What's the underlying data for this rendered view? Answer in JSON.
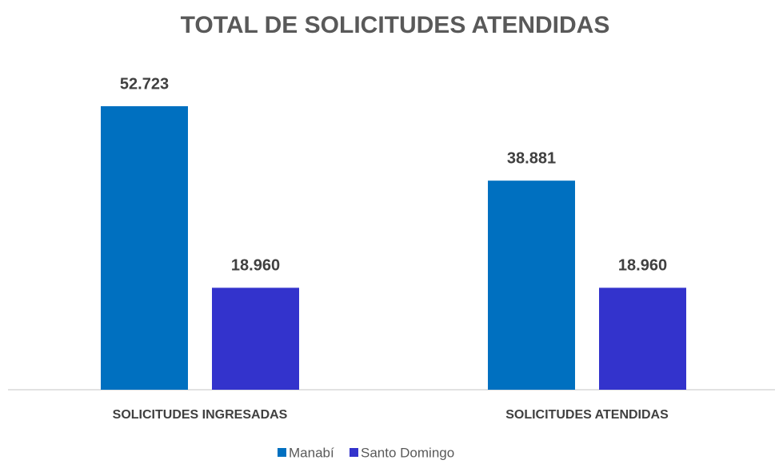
{
  "chart_data": {
    "type": "bar",
    "title": "TOTAL DE SOLICITUDES ATENDIDAS",
    "categories": [
      "SOLICITUDES INGRESADAS",
      "SOLICITUDES ATENDIDAS"
    ],
    "series": [
      {
        "name": "Manabí",
        "color": "#0070c0",
        "values": [
          52723,
          38881
        ],
        "value_labels": [
          "52.723",
          "38.881"
        ]
      },
      {
        "name": "Santo Domingo",
        "color": "#3333cc",
        "values": [
          18960,
          18960
        ],
        "value_labels": [
          "18.960",
          "18.960"
        ]
      }
    ],
    "legend": "bottom"
  }
}
